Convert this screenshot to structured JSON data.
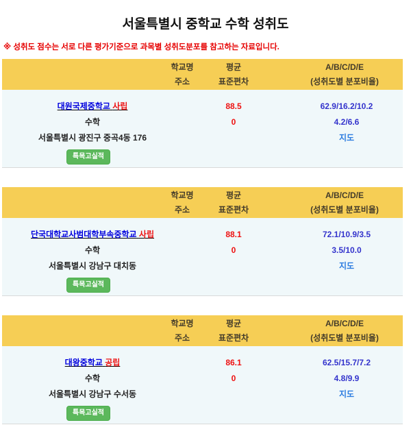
{
  "page": {
    "title": "서울특별시 중학교 수학 성취도",
    "notice": "※ 성취도 점수는 서로 다른 평가기준으로 과목별 성취도분포를 참고하는 자료입니다."
  },
  "table_header": {
    "col1_line1": "학교명",
    "col1_line2": "주소",
    "col2_line1": "평균",
    "col2_line2": "표준편차",
    "col3_line1": "A/B/C/D/E",
    "col3_line2": "(성취도별 분포비율)"
  },
  "schools": [
    {
      "name": "대원국제중학교",
      "type": "사립",
      "average": "88.5",
      "dist_line1": "62.9/16.2/10.2",
      "subject": "수학",
      "std_dev": "0",
      "dist_line2": "4.2/6.6",
      "address": "서울특별시 광진구 중곡4동 176",
      "map_label": "지도",
      "button_label": "특목고실적"
    },
    {
      "name": "단국대학교사범대학부속중학교",
      "type": "사립",
      "average": "88.1",
      "dist_line1": "72.1/10.9/3.5",
      "subject": "수학",
      "std_dev": "0",
      "dist_line2": "3.5/10.0",
      "address": "서울특별시 강남구 대치동",
      "map_label": "지도",
      "button_label": "특목고실적"
    },
    {
      "name": "대왕중학교",
      "type": "공립",
      "average": "86.1",
      "dist_line1": "62.5/15.7/7.2",
      "subject": "수학",
      "std_dev": "0",
      "dist_line2": "4.8/9.9",
      "address": "서울특별시 강남구 수서동",
      "map_label": "지도",
      "button_label": "특목고실적"
    }
  ],
  "colors": {
    "header_bg": "#f6ce55",
    "data_bg": "#f0f8fa",
    "school_link_blue": "#0000dd",
    "school_type_red": "#ee1111",
    "value_red": "#ee1111",
    "distribution_blue": "#3333cc",
    "map_link_blue": "#2d7de0",
    "button_green": "#5cb85c",
    "notice_red": "#e60000"
  }
}
